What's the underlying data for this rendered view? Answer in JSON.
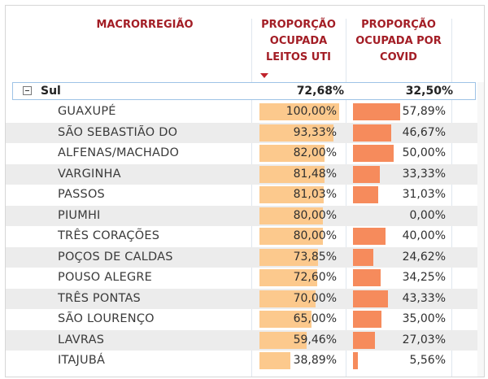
{
  "table": {
    "headers": {
      "region": "MACRORREGIÃO",
      "occupied_beds": [
        "PROPORÇÃO",
        "OCUPADA",
        "LEITOS UTI"
      ],
      "occupied_covid": [
        "PROPORÇÃO",
        "OCUPADA POR",
        "COVID"
      ]
    },
    "sort_indicator": "sort-descending-arrow",
    "total": {
      "label": "Sul",
      "beds": "72,68%",
      "covid": "32,50%"
    },
    "rows": [
      {
        "name": "GUAXUPÉ",
        "beds": "100,00%",
        "covid": "57,89%",
        "beds_pct": 100.0,
        "covid_pct": 57.89
      },
      {
        "name": "SÃO SEBASTIÃO DO",
        "beds": "93,33%",
        "covid": "46,67%",
        "beds_pct": 93.33,
        "covid_pct": 46.67
      },
      {
        "name": "ALFENAS/MACHADO",
        "beds": "82,00%",
        "covid": "50,00%",
        "beds_pct": 82.0,
        "covid_pct": 50.0
      },
      {
        "name": "VARGINHA",
        "beds": "81,48%",
        "covid": "33,33%",
        "beds_pct": 81.48,
        "covid_pct": 33.33
      },
      {
        "name": "PASSOS",
        "beds": "81,03%",
        "covid": "31,03%",
        "beds_pct": 81.03,
        "covid_pct": 31.03
      },
      {
        "name": "PIUMHI",
        "beds": "80,00%",
        "covid": "0,00%",
        "beds_pct": 80.0,
        "covid_pct": 0.0
      },
      {
        "name": "TRÊS CORAÇÕES",
        "beds": "80,00%",
        "covid": "40,00%",
        "beds_pct": 80.0,
        "covid_pct": 40.0
      },
      {
        "name": "POÇOS DE CALDAS",
        "beds": "73,85%",
        "covid": "24,62%",
        "beds_pct": 73.85,
        "covid_pct": 24.62
      },
      {
        "name": "POUSO ALEGRE",
        "beds": "72,60%",
        "covid": "34,25%",
        "beds_pct": 72.6,
        "covid_pct": 34.25
      },
      {
        "name": "TRÊS PONTAS",
        "beds": "70,00%",
        "covid": "43,33%",
        "beds_pct": 70.0,
        "covid_pct": 43.33
      },
      {
        "name": "SÃO LOURENÇO",
        "beds": "65,00%",
        "covid": "35,00%",
        "beds_pct": 65.0,
        "covid_pct": 35.0
      },
      {
        "name": "LAVRAS",
        "beds": "59,46%",
        "covid": "27,03%",
        "beds_pct": 59.46,
        "covid_pct": 27.03
      },
      {
        "name": "ITAJUBÁ",
        "beds": "38,89%",
        "covid": "5,56%",
        "beds_pct": 38.89,
        "covid_pct": 5.56
      }
    ]
  },
  "colors": {
    "header_text": "#a31d25",
    "beds_bar": "#fcc98d",
    "covid_bar": "#f68b5c",
    "total_border": "#9ec3e6"
  }
}
